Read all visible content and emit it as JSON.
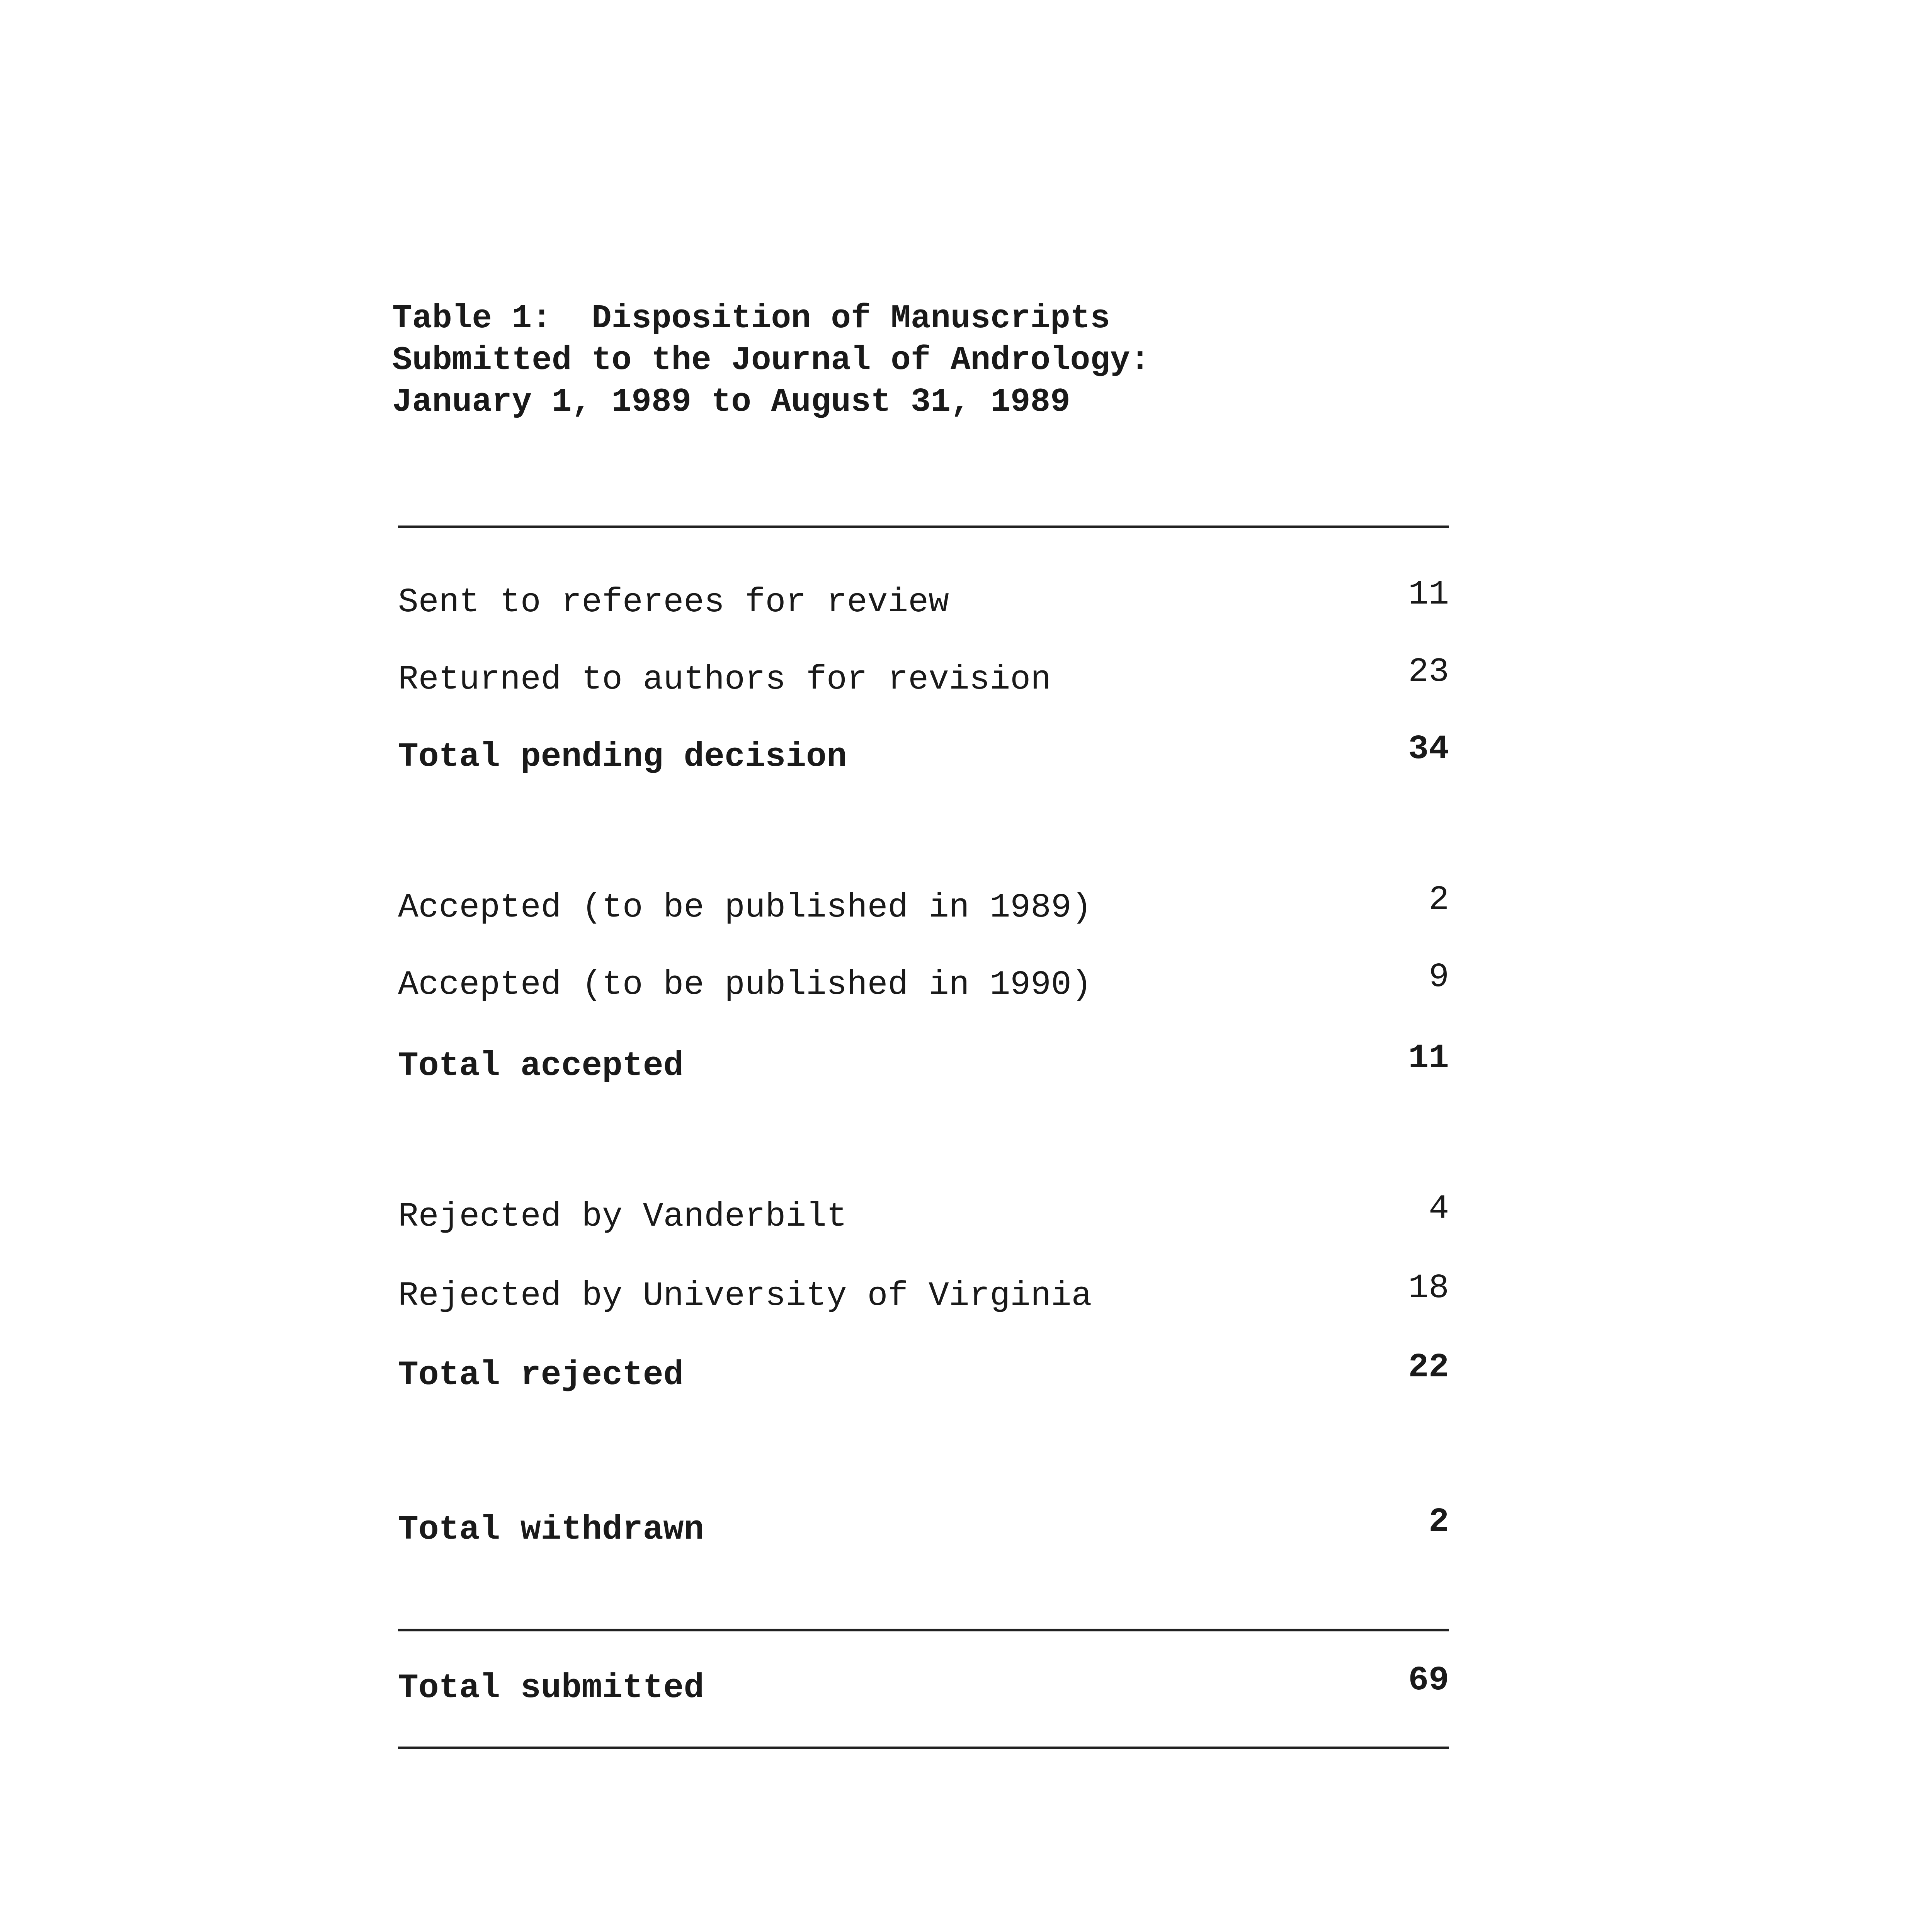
{
  "title": {
    "line1": "Table 1:  Disposition of Manuscripts",
    "line2": "Submitted to the Journal of Andrology:",
    "line3": "January 1, 1989 to August 31, 1989"
  },
  "rows": [
    {
      "label": "Sent to referees for review",
      "value": "11"
    },
    {
      "label": "Returned to authors for revision",
      "value": "23"
    },
    {
      "label": "Total pending decision",
      "value": "34"
    },
    {
      "label": "Accepted (to be published in 1989)",
      "value": "2"
    },
    {
      "label": "Accepted (to be published in 1990)",
      "value": "9"
    },
    {
      "label": "Total accepted",
      "value": "11"
    },
    {
      "label": "Rejected by Vanderbilt",
      "value": "4"
    },
    {
      "label": "Rejected by University of Virginia",
      "value": "18"
    },
    {
      "label": "Total rejected",
      "value": "22"
    },
    {
      "label": "Total withdrawn",
      "value": "2"
    },
    {
      "label": "Total submitted",
      "value": "69"
    }
  ]
}
